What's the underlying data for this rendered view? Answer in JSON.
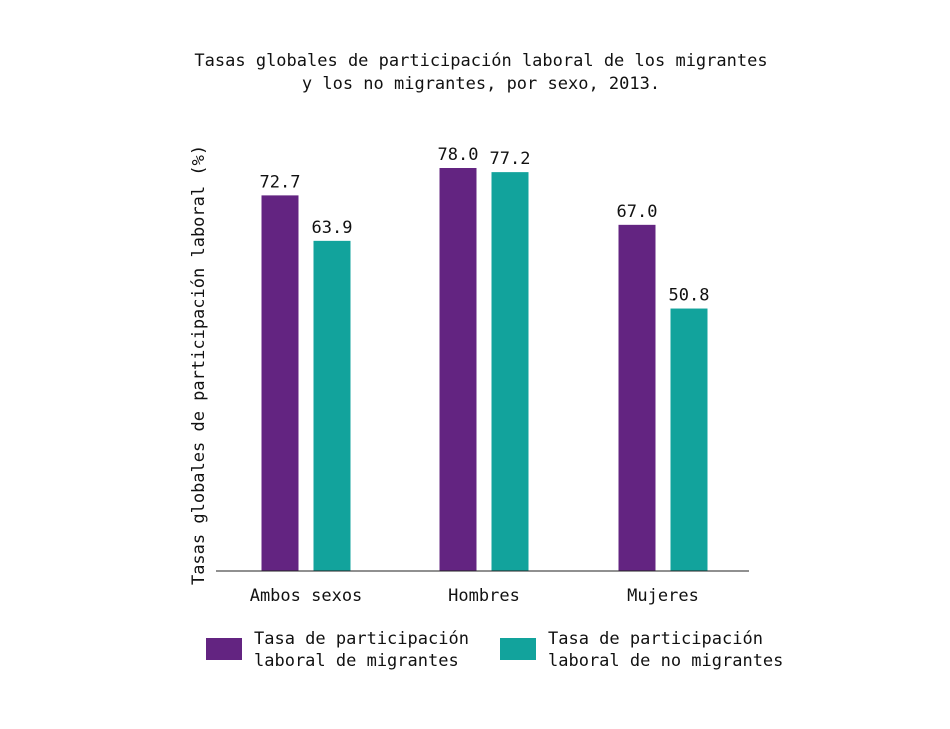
{
  "chart_data": {
    "type": "bar",
    "title_lines": [
      "Tasas globales de participación laboral de los migrantes",
      "y los no migrantes, por sexo, 2013."
    ],
    "xlabel": "",
    "ylabel": "Tasas globales de participación laboral (%)",
    "categories": [
      "Ambos sexos",
      "Hombres",
      "Mujeres"
    ],
    "series": [
      {
        "name": "Tasa de participación laboral de migrantes",
        "color": "#632481",
        "values": [
          72.7,
          78.0,
          67.0
        ],
        "labels": [
          "72.7",
          "78.0",
          "67.0"
        ]
      },
      {
        "name": "Tasa de participación laboral de no migrantes",
        "color": "#12a39c",
        "values": [
          63.9,
          77.2,
          50.8
        ],
        "labels": [
          "63.9",
          "77.2",
          "50.8"
        ]
      }
    ],
    "ylim": [
      0,
      78
    ],
    "grid": false,
    "legend_position": "bottom"
  },
  "legend": {
    "items": [
      {
        "line1": "Tasa de participación",
        "line2": "laboral de migrantes",
        "color": "#632481"
      },
      {
        "line1": "Tasa de participación",
        "line2": "laboral de no migrantes",
        "color": "#12a39c"
      }
    ]
  }
}
